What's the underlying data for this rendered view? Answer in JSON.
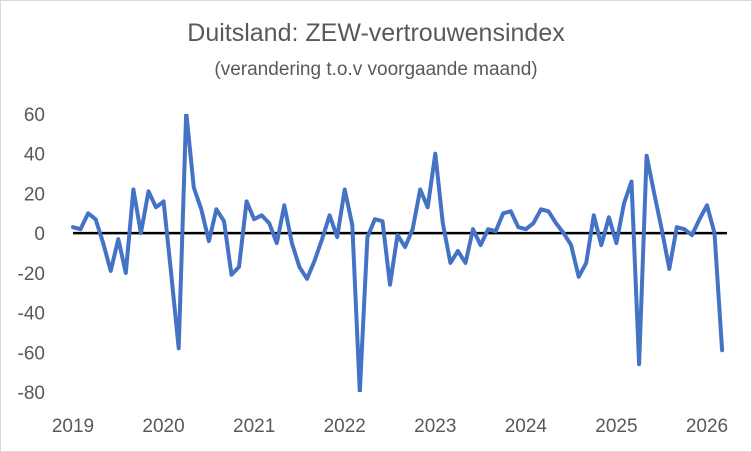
{
  "chart_data": {
    "type": "line",
    "title": "Duitsland: ZEW-vertrouwensindex",
    "subtitle": "(verandering t.o.v voorgaande maand)",
    "xlabel": "",
    "ylabel": "",
    "ylim": [
      -80,
      60
    ],
    "yticks": [
      60,
      40,
      20,
      0,
      -20,
      -40,
      -60,
      -80
    ],
    "xticks": [
      "2019",
      "2020",
      "2021",
      "2022",
      "2023",
      "2024",
      "2025",
      "2026"
    ],
    "grid": false,
    "legend": "none",
    "line_color": "#4472C4",
    "zero_line_color": "#000000",
    "series": [
      {
        "x": [
          "2019-01",
          "2019-02",
          "2019-03",
          "2019-04",
          "2019-05",
          "2019-06",
          "2019-07",
          "2019-08",
          "2019-09",
          "2019-10",
          "2019-11",
          "2019-12",
          "2020-01",
          "2020-02",
          "2020-03",
          "2020-04",
          "2020-05",
          "2020-06",
          "2020-07",
          "2020-08",
          "2020-09",
          "2020-10",
          "2020-11",
          "2020-12",
          "2021-01",
          "2021-02",
          "2021-03",
          "2021-04",
          "2021-05",
          "2021-06",
          "2021-07",
          "2021-08",
          "2021-09",
          "2021-10",
          "2021-11",
          "2021-12",
          "2022-01",
          "2022-02",
          "2022-03",
          "2022-04",
          "2022-05",
          "2022-06",
          "2022-07",
          "2022-08",
          "2022-09",
          "2022-10",
          "2022-11",
          "2022-12",
          "2023-01",
          "2023-02",
          "2023-03",
          "2023-04",
          "2023-05",
          "2023-06",
          "2023-07",
          "2023-08",
          "2023-09",
          "2023-10",
          "2023-11",
          "2023-12",
          "2024-01",
          "2024-02",
          "2024-03",
          "2024-04",
          "2024-05",
          "2024-06",
          "2024-07",
          "2024-08",
          "2024-09",
          "2024-10",
          "2024-11",
          "2024-12",
          "2025-01",
          "2025-02",
          "2025-03",
          "2025-04",
          "2025-05",
          "2025-06",
          "2025-07",
          "2025-08",
          "2025-09",
          "2025-10",
          "2025-11",
          "2025-12",
          "2026-01",
          "2026-02",
          "2026-03"
        ],
        "values": [
          3,
          2,
          10,
          7,
          -5,
          -19,
          -3,
          -20,
          22,
          0,
          21,
          13,
          16,
          -20,
          -58,
          61,
          23,
          12,
          -4,
          12,
          6,
          -21,
          -17,
          16,
          7,
          9,
          5,
          -5,
          14,
          -5,
          -17,
          -23,
          -14,
          -3,
          9,
          -2,
          22,
          4,
          -80,
          -2,
          7,
          6,
          -26,
          -1,
          -7,
          2,
          22,
          13,
          40,
          5,
          -15,
          -9,
          -15,
          2,
          -6,
          2,
          1,
          10,
          11,
          3,
          2,
          5,
          12,
          11,
          5,
          0,
          -6,
          -22,
          -15,
          9,
          -6,
          8,
          -5,
          15,
          26,
          -66,
          39,
          20,
          2,
          -18,
          3,
          2,
          -1,
          7,
          14,
          0,
          -59
        ]
      }
    ]
  }
}
